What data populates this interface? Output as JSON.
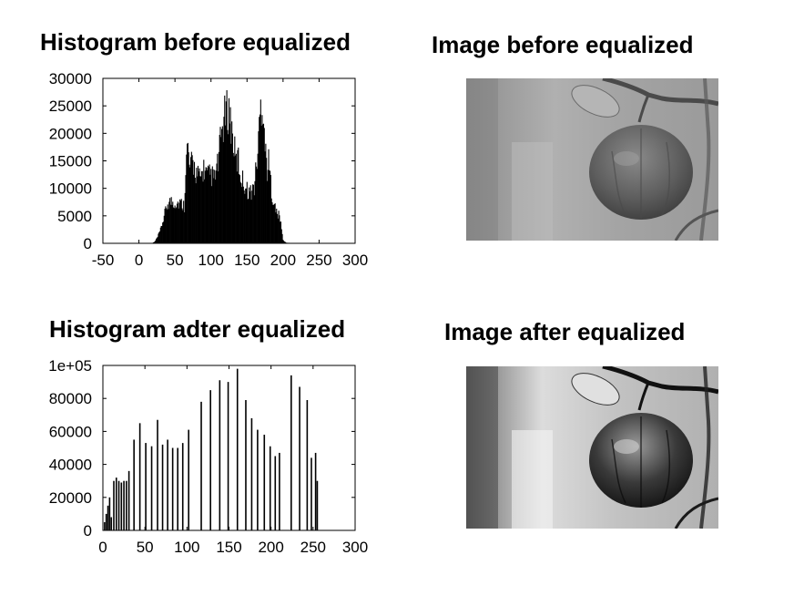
{
  "titles": {
    "hist_before": "Histogram before equalized",
    "img_before": "Image before equalized",
    "hist_after": "Histogram adter equalized",
    "img_after": "Image after equalized"
  },
  "colors": {
    "bars": "#000000",
    "background": "#ffffff"
  },
  "chart_data": [
    {
      "type": "bar",
      "title": "Histogram before equalized",
      "xlabel": "",
      "ylabel": "",
      "xlim": [
        -50,
        300
      ],
      "ylim": [
        0,
        30000
      ],
      "xticks": [
        -50,
        0,
        50,
        100,
        150,
        200,
        250,
        300
      ],
      "yticks": [
        0,
        5000,
        10000,
        15000,
        20000,
        25000,
        30000
      ],
      "ytick_labels": [
        "0",
        "5000",
        "10000",
        "15000",
        "20000",
        "25000",
        "30000"
      ],
      "grid": false,
      "envelope": {
        "x": [
          0,
          18,
          22,
          26,
          30,
          35,
          40,
          45,
          50,
          55,
          60,
          63,
          65,
          68,
          70,
          75,
          80,
          85,
          90,
          95,
          100,
          105,
          110,
          115,
          120,
          125,
          130,
          133,
          135,
          138,
          140,
          145,
          150,
          155,
          160,
          165,
          168,
          170,
          173,
          175,
          178,
          180,
          185,
          190,
          195,
          198,
          200,
          205,
          230,
          255
        ],
        "y": [
          0,
          0,
          300,
          1200,
          2500,
          5000,
          7500,
          7800,
          7600,
          7500,
          7400,
          7000,
          15000,
          18000,
          14000,
          15000,
          13000,
          12000,
          14000,
          12500,
          12800,
          12000,
          15000,
          21000,
          24000,
          25000,
          20000,
          17000,
          15000,
          16000,
          13000,
          11500,
          10000,
          9500,
          10500,
          17000,
          24000,
          26500,
          25000,
          18000,
          14000,
          15000,
          9000,
          6000,
          5000,
          3000,
          500,
          100,
          0,
          0
        ]
      }
    },
    {
      "type": "bar",
      "title": "Histogram adter equalized",
      "xlabel": "",
      "ylabel": "",
      "xlim": [
        0,
        300
      ],
      "ylim": [
        0,
        100000
      ],
      "xticks": [
        0,
        50,
        100,
        150,
        200,
        250,
        300
      ],
      "yticks": [
        0,
        20000,
        40000,
        60000,
        80000,
        100000
      ],
      "ytick_labels": [
        "0",
        "20000",
        "40000",
        "60000",
        "80000",
        "1e+05"
      ],
      "grid": false,
      "x": [
        2,
        4,
        6,
        8,
        10,
        13,
        16,
        19,
        22,
        25,
        28,
        31,
        37,
        44,
        51,
        58,
        65,
        71,
        77,
        83,
        89,
        95,
        102,
        117,
        128,
        139,
        149,
        160,
        170,
        177,
        184,
        192,
        199,
        205,
        210,
        224,
        234,
        243,
        248,
        253,
        255
      ],
      "values": [
        5000,
        10000,
        15000,
        20000,
        8000,
        30000,
        32000,
        30000,
        29000,
        30000,
        30000,
        36000,
        55000,
        65000,
        53000,
        51000,
        67000,
        52000,
        55000,
        50000,
        50000,
        53000,
        61000,
        78000,
        85000,
        91000,
        90000,
        98000,
        79000,
        68000,
        61000,
        58000,
        51000,
        45000,
        47000,
        94000,
        87000,
        79000,
        44000,
        47000,
        30000
      ]
    }
  ],
  "images": {
    "before": {
      "kind": "grayscale photo of an apple on a branch",
      "contrast": "low"
    },
    "after": {
      "kind": "grayscale photo of an apple on a branch",
      "contrast": "high"
    }
  }
}
